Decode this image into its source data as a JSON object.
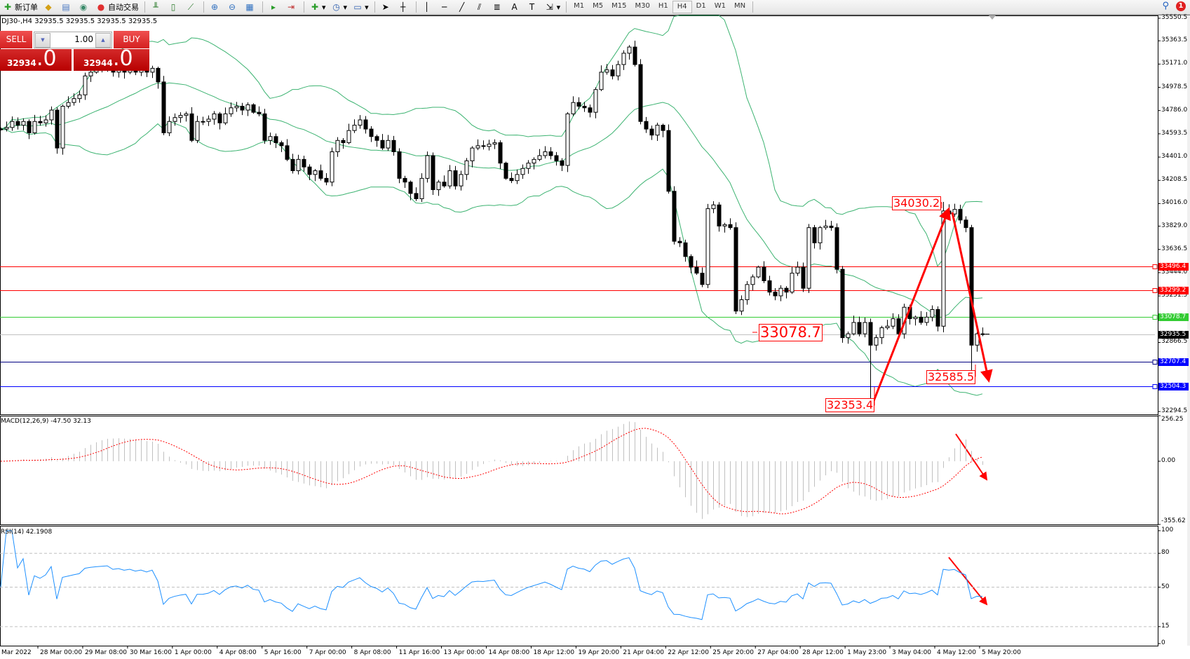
{
  "toolbar": {
    "new_order": "新订单",
    "auto_trading": "自动交易",
    "timeframes": [
      "M1",
      "M5",
      "M15",
      "M30",
      "H1",
      "H4",
      "D1",
      "W1",
      "MN"
    ],
    "active_timeframe": "H4",
    "notification_count": "1",
    "icons": [
      "new-order-icon",
      "gold-icon",
      "history-icon",
      "signal-icon",
      "auto-trading-icon",
      "bar-chart-icon",
      "candlestick-icon",
      "line-chart-icon",
      "zoom-in-icon",
      "zoom-out-icon",
      "tile-icon",
      "autoscroll-icon",
      "chart-shift-icon",
      "indicators-icon",
      "period-icon",
      "templates-icon",
      "cursor-icon",
      "crosshair-icon",
      "vertical-line-icon",
      "horizontal-line-icon",
      "trendline-icon",
      "fibonacci-icon",
      "channel-icon",
      "text-icon",
      "text-label-icon",
      "arrows-icon",
      "search-icon",
      "notification-icon"
    ]
  },
  "chart": {
    "header": "DJ30-,H4  32935.5 32935.5 32935.5 32935.5",
    "one_click": {
      "sell_label": "SELL",
      "buy_label": "BUY",
      "lot": "1.00",
      "sell_price_main": "32934",
      "sell_price_frac": ".0",
      "buy_price_main": "32944",
      "buy_price_frac": ".0"
    },
    "price_axis": [
      "35550.5",
      "35363.5",
      "35171.0",
      "34978.5",
      "34786.0",
      "34593.5",
      "34401.0",
      "34208.5",
      "34016.0",
      "33829.0",
      "33636.5",
      "33444.0",
      "33251.5",
      "32866.5",
      "32294.5"
    ],
    "levels": [
      {
        "price": 33496.4,
        "label": "33496.4",
        "color": "#ff0000"
      },
      {
        "price": 33299.2,
        "label": "33299.2",
        "color": "#ff0000"
      },
      {
        "price": 33078.7,
        "label": "33078.7",
        "color": "#33cc33"
      },
      {
        "price": 32935.5,
        "label": "32935.5",
        "color": "#000000",
        "line_color": "#c0c0c0"
      },
      {
        "price": 32707.4,
        "label": "32707.4",
        "color": "#0000ff",
        "line_color": "#000080"
      },
      {
        "price": 32504.3,
        "label": "32504.3",
        "color": "#0000ff"
      }
    ],
    "annotations": [
      {
        "label": "34030.2",
        "price": 34030.2
      },
      {
        "label": "33078.7",
        "price": 33078.7
      },
      {
        "label": "32353.4",
        "price": 32353.4
      },
      {
        "label": "32585.5",
        "price": 32585.5
      }
    ],
    "band_color": "#3cb371",
    "arrow_color": "#ff0000"
  },
  "chart_data": {
    "type": "candlestick",
    "symbol": "DJ30-",
    "timeframe": "H4",
    "ylim": [
      32294.5,
      35550.5
    ],
    "closes": [
      34633,
      34646,
      34696,
      34665,
      34696,
      34602,
      34696,
      34684,
      34709,
      34790,
      34476,
      34822,
      34853,
      34885,
      34916,
      35073,
      35104,
      35123,
      35136,
      35148,
      35104,
      35123,
      35104,
      35123,
      35104,
      35123,
      35104,
      35136,
      35023,
      34602,
      34696,
      34728,
      34746,
      34759,
      34539,
      34696,
      34696,
      34715,
      34759,
      34684,
      34759,
      34809,
      34822,
      34790,
      34834,
      34772,
      34759,
      34539,
      34571,
      34520,
      34495,
      34382,
      34288,
      34382,
      34319,
      34257,
      34288,
      34225,
      34194,
      34445,
      34539,
      34520,
      34621,
      34665,
      34709,
      34633,
      34571,
      34539,
      34476,
      34539,
      34445,
      34225,
      34194,
      34100,
      34056,
      34225,
      34413,
      34131,
      34194,
      34162,
      34288,
      34162,
      34257,
      34370,
      34476,
      34495,
      34489,
      34508,
      34520,
      34351,
      34225,
      34206,
      34257,
      34307,
      34351,
      34382,
      34413,
      34445,
      34413,
      34370,
      34332,
      34759,
      34853,
      34822,
      34809,
      34772,
      34960,
      35104,
      35123,
      35073,
      35167,
      35261,
      35312,
      35167,
      34696,
      34633,
      34583,
      34665,
      34621,
      34118,
      33704,
      33691,
      33578,
      33490,
      33440,
      33346,
      33974,
      34005,
      33830,
      33842,
      33817,
      33126,
      33220,
      33346,
      33409,
      33490,
      33377,
      33283,
      33252,
      33315,
      33283,
      33440,
      33490,
      33315,
      33817,
      33691,
      33817,
      33830,
      33817,
      33472,
      32906,
      32938,
      33032,
      32938,
      33032,
      32844,
      32906,
      32988,
      33001,
      33063,
      32938,
      33158,
      33063,
      33076,
      33032,
      33076,
      33139,
      33001,
      33955,
      33930,
      33968,
      33880,
      33817,
      32844,
      32938,
      32935.5
    ],
    "indicators": {
      "bollinger": {
        "period": 20,
        "deviation": 2
      },
      "macd": {
        "label": "MACD(12,26,9) -47.50 32.13",
        "fast": 12,
        "slow": 26,
        "signal": 9,
        "ylim": [
          -355.62,
          256.25
        ],
        "axis": [
          "256.25",
          "0.00",
          "-355.62"
        ]
      },
      "rsi": {
        "label": "RSI(14) 42.1908",
        "period": 14,
        "ylim": [
          0,
          100
        ],
        "levels": [
          80,
          50,
          15
        ],
        "axis": [
          "100",
          "80",
          "50",
          "15",
          "0"
        ],
        "color": "#1e90ff"
      }
    },
    "time_axis": [
      "Mar 2022",
      "28 Mar 00:00",
      "29 Mar 08:00",
      "30 Mar 16:00",
      "1 Apr 00:00",
      "4 Apr 08:00",
      "5 Apr 16:00",
      "7 Apr 00:00",
      "8 Apr 08:00",
      "11 Apr 16:00",
      "13 Apr 00:00",
      "14 Apr 08:00",
      "18 Apr 12:00",
      "19 Apr 20:00",
      "21 Apr 04:00",
      "22 Apr 12:00",
      "25 Apr 20:00",
      "27 Apr 04:00",
      "28 Apr 12:00",
      "1 May 23:00",
      "3 May 04:00",
      "4 May 12:00",
      "5 May 20:00"
    ]
  }
}
